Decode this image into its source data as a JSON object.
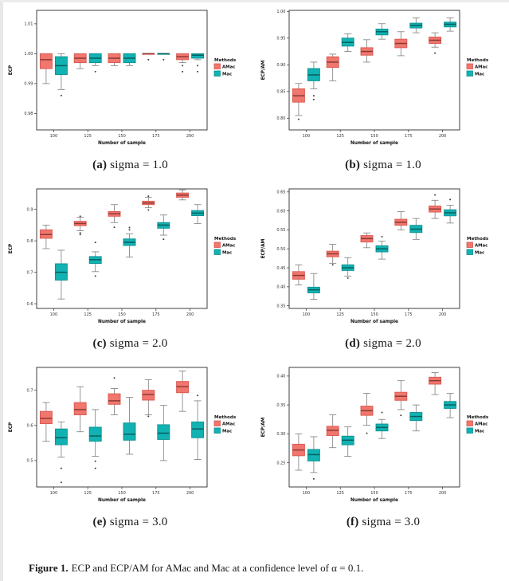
{
  "legend": {
    "title": "Methods",
    "items": [
      "AMac",
      "Mac"
    ]
  },
  "figure_caption": {
    "label": "Figure 1.",
    "text": "ECP and ECP/AM for AMac and Mac at a confidence level of α = 0.1."
  },
  "chart_data": [
    {
      "id": "a",
      "type": "boxplot",
      "title": "",
      "xlabel": "Number of sample",
      "ylabel": "ECP",
      "caption_marker": "(a)",
      "caption_text": "sigma = 1.0",
      "categories": [
        "100",
        "125",
        "150",
        "175",
        "200"
      ],
      "ylim": [
        0.9745,
        1.0145
      ],
      "yticks": [
        0.98,
        0.99,
        1.0,
        1.01
      ],
      "ytick_labels": [
        "0.98",
        "0.99",
        "1.00",
        "1.01"
      ],
      "series": [
        {
          "name": "AMac",
          "fill": "#F0766E",
          "stroke": "#D9574E",
          "median": "#8C3A34",
          "boxes": [
            [
              0.99,
              0.995,
              0.998,
              1.0,
              1.0
            ],
            [
              0.995,
              0.997,
              0.9985,
              1.0,
              1.0
            ],
            [
              0.996,
              0.997,
              0.9985,
              1.0,
              1.0
            ],
            [
              1.0,
              1.0,
              1.0,
              1.0,
              1.0
            ],
            [
              0.997,
              0.998,
              0.999,
              1.0,
              1.0
            ]
          ],
          "outliers": [
            [],
            [],
            [],
            [
              0.998
            ],
            [
              0.996,
              0.994
            ]
          ]
        },
        {
          "name": "Mac",
          "fill": "#12B2B3",
          "stroke": "#0C908F",
          "median": "#065F60",
          "boxes": [
            [
              0.988,
              0.993,
              0.996,
              0.999,
              1.0
            ],
            [
              0.996,
              0.997,
              0.9985,
              1.0,
              1.0
            ],
            [
              0.996,
              0.997,
              0.9985,
              1.0,
              1.0
            ],
            [
              1.0,
              1.0,
              1.0,
              1.0,
              1.0
            ],
            [
              0.998,
              0.9985,
              0.9995,
              1.0,
              1.0
            ]
          ],
          "outliers": [
            [
              0.986
            ],
            [
              0.994
            ],
            [],
            [
              0.998
            ],
            [
              0.996,
              0.994
            ]
          ]
        }
      ]
    },
    {
      "id": "b",
      "type": "boxplot",
      "title": "",
      "xlabel": "Number of sample",
      "ylabel": "ECP/AM",
      "caption_marker": "(b)",
      "caption_text": "sigma = 1.0",
      "categories": [
        "100",
        "125",
        "150",
        "175",
        "200"
      ],
      "ylim": [
        0.778,
        1.002
      ],
      "yticks": [
        0.8,
        0.85,
        0.9,
        0.95,
        1.0
      ],
      "ytick_labels": [
        "0.80",
        "0.85",
        "0.90",
        "0.95",
        "1.00"
      ],
      "series": [
        {
          "name": "AMac",
          "fill": "#F0766E",
          "stroke": "#D9574E",
          "median": "#8C3A34",
          "boxes": [
            [
              0.805,
              0.83,
              0.842,
              0.855,
              0.865
            ],
            [
              0.87,
              0.895,
              0.905,
              0.915,
              0.92
            ],
            [
              0.905,
              0.918,
              0.925,
              0.932,
              0.947
            ],
            [
              0.917,
              0.932,
              0.94,
              0.948,
              0.962
            ],
            [
              0.933,
              0.94,
              0.946,
              0.952,
              0.96
            ]
          ],
          "outliers": [
            [
              0.798
            ],
            [],
            [],
            [],
            [
              0.922
            ]
          ]
        },
        {
          "name": "Mac",
          "fill": "#12B2B3",
          "stroke": "#0C908F",
          "median": "#065F60",
          "boxes": [
            [
              0.855,
              0.87,
              0.881,
              0.893,
              0.905
            ],
            [
              0.925,
              0.935,
              0.942,
              0.95,
              0.958
            ],
            [
              0.948,
              0.956,
              0.962,
              0.967,
              0.977
            ],
            [
              0.96,
              0.969,
              0.974,
              0.978,
              0.988
            ],
            [
              0.963,
              0.971,
              0.976,
              0.98,
              0.988
            ]
          ],
          "outliers": [
            [
              0.842,
              0.835
            ],
            [],
            [],
            [],
            []
          ]
        }
      ]
    },
    {
      "id": "c",
      "type": "boxplot",
      "title": "",
      "xlabel": "Number of sample",
      "ylabel": "ECP",
      "caption_marker": "(c)",
      "caption_text": "sigma = 2.0",
      "categories": [
        "100",
        "125",
        "150",
        "175",
        "200"
      ],
      "ylim": [
        0.585,
        0.965
      ],
      "yticks": [
        0.6,
        0.7,
        0.8,
        0.9
      ],
      "ytick_labels": [
        "0.6",
        "0.7",
        "0.8",
        "0.9"
      ],
      "series": [
        {
          "name": "AMac",
          "fill": "#F0766E",
          "stroke": "#D9574E",
          "median": "#8C3A34",
          "boxes": [
            [
              0.775,
              0.808,
              0.82,
              0.835,
              0.85
            ],
            [
              0.832,
              0.848,
              0.855,
              0.862,
              0.875
            ],
            [
              0.858,
              0.878,
              0.886,
              0.893,
              0.915
            ],
            [
              0.905,
              0.915,
              0.92,
              0.926,
              0.938
            ],
            [
              0.93,
              0.938,
              0.945,
              0.952,
              0.962
            ]
          ],
          "outliers": [
            [],
            [
              0.878,
              0.825,
              0.82
            ],
            [
              0.843
            ],
            [
              0.942,
              0.898
            ],
            []
          ]
        },
        {
          "name": "Mac",
          "fill": "#12B2B3",
          "stroke": "#0C908F",
          "median": "#065F60",
          "boxes": [
            [
              0.615,
              0.675,
              0.7,
              0.727,
              0.77
            ],
            [
              0.702,
              0.728,
              0.74,
              0.75,
              0.765
            ],
            [
              0.748,
              0.785,
              0.795,
              0.806,
              0.822
            ],
            [
              0.818,
              0.84,
              0.85,
              0.858,
              0.882
            ],
            [
              0.855,
              0.88,
              0.888,
              0.896,
              0.915
            ]
          ],
          "outliers": [
            [],
            [
              0.795,
              0.688
            ],
            [
              0.842,
              0.835
            ],
            [
              0.805
            ],
            []
          ]
        }
      ]
    },
    {
      "id": "d",
      "type": "boxplot",
      "title": "",
      "xlabel": "Number of sample",
      "ylabel": "ECP/AM",
      "caption_marker": "(d)",
      "caption_text": "sigma = 2.0",
      "categories": [
        "100",
        "125",
        "150",
        "175",
        "200"
      ],
      "ylim": [
        0.343,
        0.658
      ],
      "yticks": [
        0.35,
        0.4,
        0.45,
        0.5,
        0.55,
        0.6,
        0.65
      ],
      "ytick_labels": [
        "0.35",
        "0.40",
        "0.45",
        "0.50",
        "0.55",
        "0.60",
        "0.65"
      ],
      "series": [
        {
          "name": "AMac",
          "fill": "#F0766E",
          "stroke": "#D9574E",
          "median": "#8C3A34",
          "boxes": [
            [
              0.405,
              0.42,
              0.43,
              0.44,
              0.458
            ],
            [
              0.462,
              0.479,
              0.487,
              0.494,
              0.512
            ],
            [
              0.503,
              0.518,
              0.527,
              0.535,
              0.542
            ],
            [
              0.55,
              0.562,
              0.57,
              0.578,
              0.598
            ],
            [
              0.58,
              0.597,
              0.605,
              0.613,
              0.628
            ]
          ],
          "outliers": [
            [],
            [
              0.458
            ],
            [],
            [],
            [
              0.642
            ]
          ]
        },
        {
          "name": "Mac",
          "fill": "#12B2B3",
          "stroke": "#0C908F",
          "median": "#065F60",
          "boxes": [
            [
              0.367,
              0.384,
              0.392,
              0.399,
              0.435
            ],
            [
              0.428,
              0.443,
              0.45,
              0.458,
              0.477
            ],
            [
              0.473,
              0.492,
              0.5,
              0.508,
              0.52
            ],
            [
              0.525,
              0.543,
              0.552,
              0.562,
              0.58
            ],
            [
              0.568,
              0.587,
              0.595,
              0.603,
              0.615
            ]
          ],
          "outliers": [
            [],
            [
              0.423
            ],
            [
              0.532
            ],
            [],
            [
              0.63
            ]
          ]
        }
      ]
    },
    {
      "id": "e",
      "type": "boxplot",
      "title": "",
      "xlabel": "Number of sample",
      "ylabel": "ECP",
      "caption_marker": "(e)",
      "caption_text": "sigma = 3.0",
      "categories": [
        "100",
        "125",
        "150",
        "175",
        "200"
      ],
      "ylim": [
        0.425,
        0.765
      ],
      "yticks": [
        0.5,
        0.6,
        0.7
      ],
      "ytick_labels": [
        "0.5",
        "0.6",
        "0.7"
      ],
      "series": [
        {
          "name": "AMac",
          "fill": "#F0766E",
          "stroke": "#D9574E",
          "median": "#8C3A34",
          "boxes": [
            [
              0.555,
              0.605,
              0.62,
              0.64,
              0.665
            ],
            [
              0.582,
              0.63,
              0.645,
              0.665,
              0.71
            ],
            [
              0.63,
              0.66,
              0.67,
              0.69,
              0.705
            ],
            [
              0.63,
              0.672,
              0.688,
              0.7,
              0.73
            ],
            [
              0.64,
              0.693,
              0.71,
              0.725,
              0.755
            ]
          ],
          "outliers": [
            [],
            [],
            [
              0.735
            ],
            [
              0.626
            ],
            []
          ]
        },
        {
          "name": "Mac",
          "fill": "#12B2B3",
          "stroke": "#0C908F",
          "median": "#065F60",
          "boxes": [
            [
              0.51,
              0.545,
              0.565,
              0.59,
              0.61
            ],
            [
              0.512,
              0.555,
              0.57,
              0.595,
              0.645
            ],
            [
              0.518,
              0.558,
              0.575,
              0.607,
              0.68
            ],
            [
              0.5,
              0.56,
              0.578,
              0.602,
              0.657
            ],
            [
              0.503,
              0.565,
              0.59,
              0.61,
              0.67
            ]
          ],
          "outliers": [
            [
              0.478,
              0.438
            ],
            [
              0.498,
              0.478
            ],
            [],
            [],
            [
              0.685
            ]
          ]
        }
      ]
    },
    {
      "id": "f",
      "type": "boxplot",
      "title": "",
      "xlabel": "Number of sample",
      "ylabel": "ECP/AM",
      "caption_marker": "(f)",
      "caption_text": "sigma = 3.0",
      "categories": [
        "100",
        "125",
        "150",
        "175",
        "200"
      ],
      "ylim": [
        0.208,
        0.415
      ],
      "yticks": [
        0.25,
        0.3,
        0.35,
        0.4
      ],
      "ytick_labels": [
        "0.25",
        "0.30",
        "0.35",
        "0.40"
      ],
      "series": [
        {
          "name": "AMac",
          "fill": "#F0766E",
          "stroke": "#D9574E",
          "median": "#8C3A34",
          "boxes": [
            [
              0.237,
              0.262,
              0.272,
              0.282,
              0.3
            ],
            [
              0.276,
              0.297,
              0.306,
              0.313,
              0.333
            ],
            [
              0.315,
              0.332,
              0.34,
              0.348,
              0.37
            ],
            [
              0.342,
              0.358,
              0.365,
              0.372,
              0.392
            ],
            [
              0.368,
              0.386,
              0.392,
              0.398,
              0.406
            ]
          ],
          "outliers": [
            [],
            [],
            [
              0.301
            ],
            [
              0.332
            ],
            []
          ]
        },
        {
          "name": "Mac",
          "fill": "#12B2B3",
          "stroke": "#0C908F",
          "median": "#065F60",
          "boxes": [
            [
              0.233,
              0.253,
              0.264,
              0.273,
              0.295
            ],
            [
              0.261,
              0.281,
              0.289,
              0.296,
              0.312
            ],
            [
              0.292,
              0.305,
              0.311,
              0.317,
              0.325
            ],
            [
              0.305,
              0.323,
              0.33,
              0.337,
              0.35
            ],
            [
              0.328,
              0.344,
              0.35,
              0.356,
              0.37
            ]
          ],
          "outliers": [
            [
              0.222
            ],
            [],
            [
              0.337
            ],
            [],
            []
          ]
        }
      ]
    }
  ]
}
